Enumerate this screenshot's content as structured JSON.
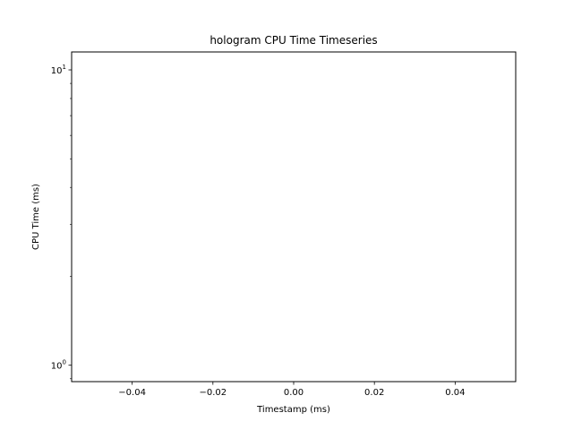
{
  "chart_data": {
    "type": "line",
    "title": "hologram CPU Time Timeseries",
    "xlabel": "Timestamp (ms)",
    "ylabel": "CPU Time (ms)",
    "yscale": "log",
    "xlim": [
      -0.055,
      0.055
    ],
    "ylim": [
      0.88,
      11.5
    ],
    "xticks": [
      -0.04,
      -0.02,
      0.0,
      0.02,
      0.04
    ],
    "xtick_labels": [
      "−0.04",
      "−0.02",
      "0.00",
      "0.02",
      "0.04"
    ],
    "yticks": [
      1,
      10
    ],
    "series": [],
    "grid": false,
    "legend": "none"
  }
}
